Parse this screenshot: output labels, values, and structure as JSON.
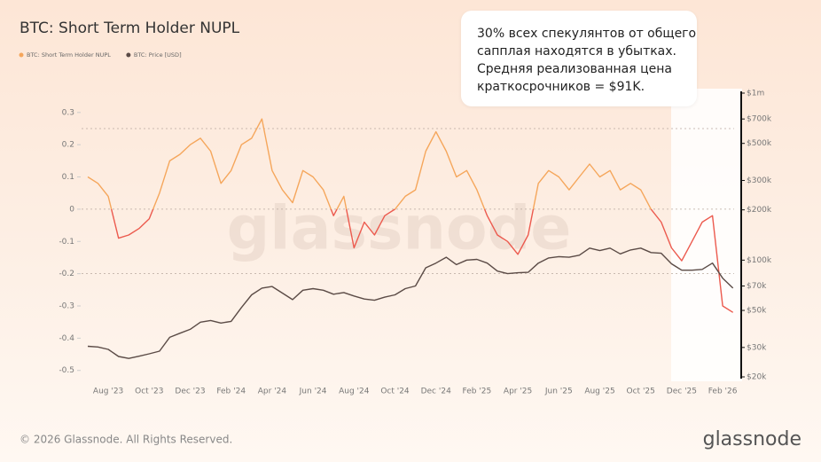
{
  "chart_data": {
    "type": "line",
    "title": "BTC: Short Term Holder NUPL",
    "callout": [
      "30% всех спекулянтов от общего",
      "сапплая находятся в убытках.",
      "Средняя реализованная цена",
      "краткосрочников = $91K."
    ],
    "watermark": "glassnode",
    "footer": "© 2026 Glassnode. All Rights Reserved.",
    "logo": "glassnode",
    "categories": [
      null,
      null,
      "Aug '23",
      null,
      null,
      null,
      "Oct '23",
      null,
      null,
      null,
      "Dec '23",
      null,
      null,
      null,
      "Feb '24",
      null,
      null,
      null,
      "Apr '24",
      null,
      null,
      null,
      "Jun '24",
      null,
      null,
      null,
      "Aug '24",
      null,
      null,
      null,
      "Oct '24",
      null,
      null,
      null,
      "Dec '24",
      null,
      null,
      null,
      "Feb '25",
      null,
      null,
      null,
      "Apr '25",
      null,
      null,
      null,
      "Jun '25",
      null,
      null,
      null,
      "Aug '25",
      null,
      null,
      null,
      "Oct '25",
      null,
      null,
      null,
      "Dec '25",
      null,
      null,
      null,
      "Feb '26",
      null
    ],
    "series": [
      {
        "name": "BTC: Short Term Holder NUPL",
        "color": "#f5a65b",
        "color_below_zero": "#ec5a4e",
        "axis": "y",
        "values": [
          0.1,
          0.08,
          0.04,
          -0.09,
          -0.08,
          -0.06,
          -0.03,
          0.05,
          0.15,
          0.17,
          0.2,
          0.22,
          0.18,
          0.08,
          0.12,
          0.2,
          0.22,
          0.28,
          0.12,
          0.06,
          0.02,
          0.12,
          0.1,
          0.06,
          -0.02,
          0.04,
          -0.12,
          -0.04,
          -0.08,
          -0.02,
          0.0,
          0.04,
          0.06,
          0.18,
          0.24,
          0.18,
          0.1,
          0.12,
          0.06,
          -0.02,
          -0.08,
          -0.1,
          -0.14,
          -0.08,
          0.08,
          0.12,
          0.1,
          0.06,
          0.1,
          0.14,
          0.1,
          0.12,
          0.06,
          0.08,
          0.06,
          0.0,
          -0.04,
          -0.12,
          -0.16,
          -0.1,
          -0.04,
          -0.02,
          -0.3,
          -0.32
        ]
      },
      {
        "name": "BTC: Price [USD]",
        "color": "#5b4b46",
        "axis": "y2",
        "values": [
          30500,
          30200,
          29200,
          26500,
          25800,
          26600,
          27500,
          28500,
          34500,
          36500,
          38500,
          42500,
          43500,
          42000,
          43000,
          52000,
          62000,
          68000,
          69500,
          63500,
          58000,
          66000,
          67500,
          66000,
          62500,
          64000,
          61000,
          58500,
          57500,
          60000,
          62000,
          67500,
          70000,
          90000,
          96000,
          104000,
          94000,
          100000,
          101000,
          96000,
          86000,
          83000,
          84000,
          84500,
          96000,
          103000,
          105000,
          104000,
          107000,
          118000,
          114000,
          118000,
          109000,
          115000,
          118000,
          111000,
          110000,
          95000,
          87000,
          87000,
          88000,
          96000,
          78000,
          68000
        ]
      }
    ],
    "ylim": [
      -0.52,
      0.36
    ],
    "yticks": [
      0.3,
      0.2,
      0.1,
      0,
      -0.1,
      -0.2,
      -0.3,
      -0.4,
      -0.5
    ],
    "reference_lines": [
      0.25,
      0,
      -0.2
    ],
    "y2lim": [
      20000,
      1000000
    ],
    "y2_log": true,
    "y2ticks": [
      {
        "value": 1000000,
        "label": "$1m"
      },
      {
        "value": 700000,
        "label": "$700k"
      },
      {
        "value": 500000,
        "label": "$500k"
      },
      {
        "value": 300000,
        "label": "$300k"
      },
      {
        "value": 200000,
        "label": "$200k"
      },
      {
        "value": 100000,
        "label": "$100k"
      },
      {
        "value": 70000,
        "label": "$70k"
      },
      {
        "value": 50000,
        "label": "$50k"
      },
      {
        "value": 30000,
        "label": "$30k"
      },
      {
        "value": 20000,
        "label": "$20k"
      }
    ],
    "legend": "top-left"
  }
}
